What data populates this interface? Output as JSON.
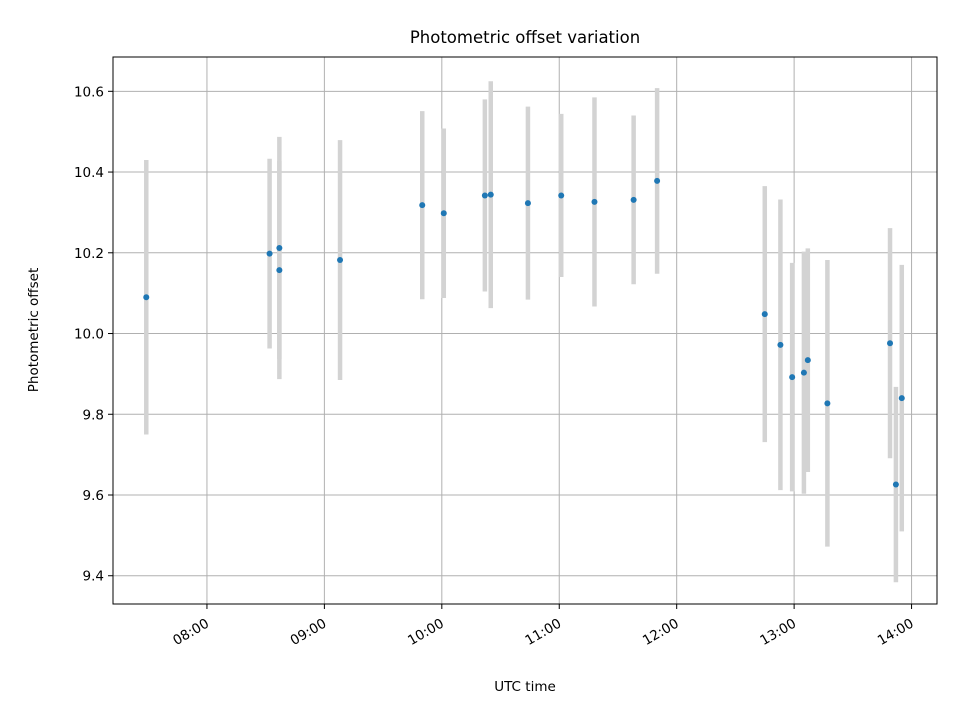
{
  "chart_data": {
    "type": "scatter",
    "title": "Photometric offset variation",
    "xlabel": "UTC time",
    "ylabel": "Photometric offset",
    "x_ticks": [
      "08:00",
      "09:00",
      "10:00",
      "11:00",
      "12:00",
      "13:00",
      "14:00"
    ],
    "y_ticks": [
      "9.4",
      "9.6",
      "9.8",
      "10.0",
      "10.2",
      "10.4",
      "10.6"
    ],
    "xlim": [
      "07:12",
      "14:13"
    ],
    "ylim": [
      9.33,
      10.685
    ],
    "grid": true,
    "point_color": "#1f77b4",
    "errorbar_color": "#d3d3d3",
    "points": [
      {
        "t": "07:29",
        "y": 10.09,
        "err": 0.34
      },
      {
        "t": "08:32",
        "y": 10.198,
        "err": 0.235
      },
      {
        "t": "08:37",
        "y": 10.212,
        "err": 0.275
      },
      {
        "t": "08:37",
        "y": 10.157,
        "err": 0.27
      },
      {
        "t": "09:08",
        "y": 10.182,
        "err": 0.297
      },
      {
        "t": "09:50",
        "y": 10.318,
        "err": 0.233
      },
      {
        "t": "10:01",
        "y": 10.298,
        "err": 0.21
      },
      {
        "t": "10:22",
        "y": 10.342,
        "err": 0.238
      },
      {
        "t": "10:25",
        "y": 10.344,
        "err": 0.281
      },
      {
        "t": "10:44",
        "y": 10.323,
        "err": 0.239
      },
      {
        "t": "11:01",
        "y": 10.342,
        "err": 0.202
      },
      {
        "t": "11:18",
        "y": 10.326,
        "err": 0.259
      },
      {
        "t": "11:38",
        "y": 10.331,
        "err": 0.209
      },
      {
        "t": "11:50",
        "y": 10.378,
        "err": 0.23
      },
      {
        "t": "12:45",
        "y": 10.048,
        "err": 0.317
      },
      {
        "t": "12:53",
        "y": 9.972,
        "err": 0.36
      },
      {
        "t": "12:59",
        "y": 9.892,
        "err": 0.283
      },
      {
        "t": "13:05",
        "y": 9.903,
        "err": 0.3
      },
      {
        "t": "13:07",
        "y": 9.934,
        "err": 0.277
      },
      {
        "t": "13:17",
        "y": 9.827,
        "err": 0.355
      },
      {
        "t": "13:49",
        "y": 9.976,
        "err": 0.285
      },
      {
        "t": "13:52",
        "y": 9.626,
        "err": 0.242
      },
      {
        "t": "13:55",
        "y": 9.84,
        "err": 0.33
      }
    ]
  }
}
